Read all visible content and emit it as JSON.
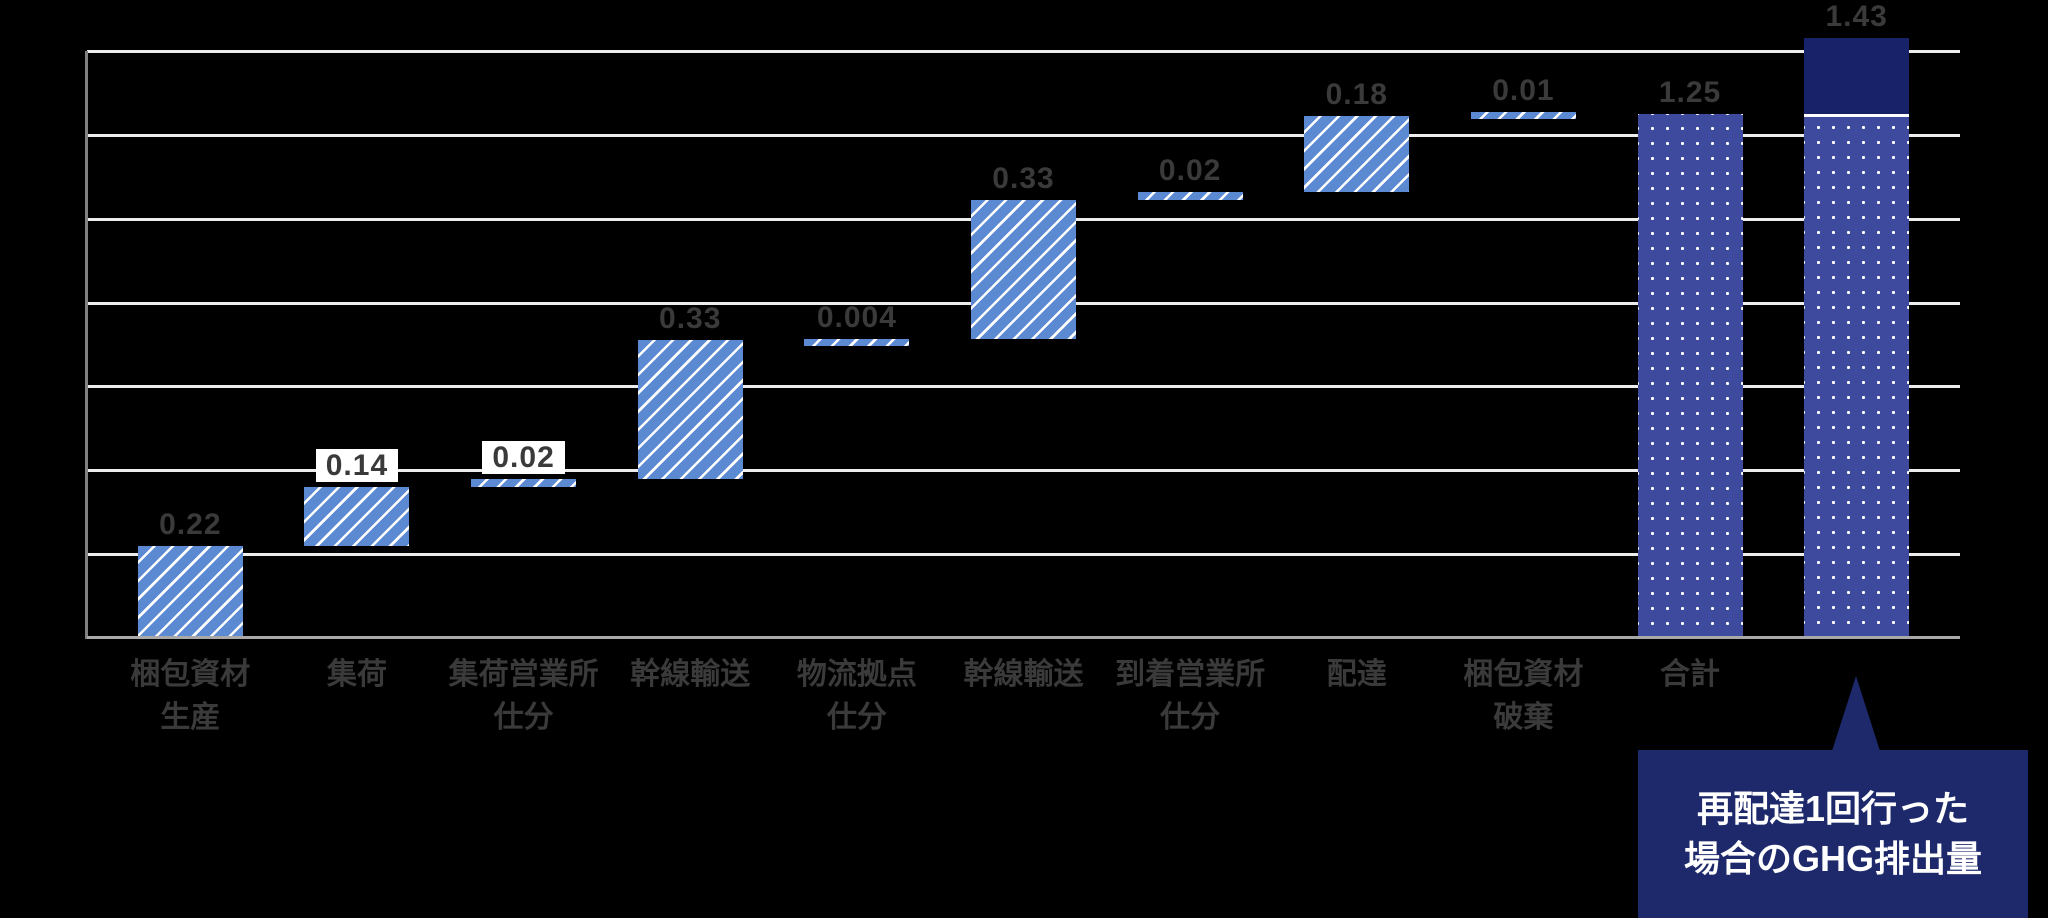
{
  "chart_data": {
    "type": "bar",
    "subtype": "waterfall",
    "title": "",
    "categories": [
      "梱包資材\n生産",
      "集荷",
      "集荷営業所\n仕分",
      "幹線輸送",
      "物流拠点\n仕分",
      "幹線輸送",
      "到着営業所\n仕分",
      "配達",
      "梱包資材\n破棄",
      "合計",
      ""
    ],
    "bars": [
      {
        "category": "梱包資材生産",
        "value": 0.22,
        "label": "0.22",
        "start": 0,
        "end": 0.22,
        "pattern": "striped",
        "label_boxed": false
      },
      {
        "category": "集荷",
        "value": 0.14,
        "label": "0.14",
        "start": 0.22,
        "end": 0.36,
        "pattern": "striped",
        "label_boxed": true
      },
      {
        "category": "集荷営業所仕分",
        "value": 0.02,
        "label": "0.02",
        "start": 0.36,
        "end": 0.38,
        "pattern": "striped",
        "label_boxed": true
      },
      {
        "category": "幹線輸送",
        "value": 0.33,
        "label": "0.33",
        "start": 0.38,
        "end": 0.71,
        "pattern": "striped",
        "label_boxed": false
      },
      {
        "category": "物流拠点仕分",
        "value": 0.004,
        "label": "0.004",
        "start": 0.71,
        "end": 0.714,
        "pattern": "striped",
        "label_boxed": false
      },
      {
        "category": "幹線輸送",
        "value": 0.33,
        "label": "0.33",
        "start": 0.714,
        "end": 1.044,
        "pattern": "striped",
        "label_boxed": false
      },
      {
        "category": "到着営業所仕分",
        "value": 0.02,
        "label": "0.02",
        "start": 1.044,
        "end": 1.064,
        "pattern": "striped",
        "label_boxed": false
      },
      {
        "category": "配達",
        "value": 0.18,
        "label": "0.18",
        "start": 1.064,
        "end": 1.244,
        "pattern": "striped",
        "label_boxed": false
      },
      {
        "category": "梱包資材破棄",
        "value": 0.01,
        "label": "0.01",
        "start": 1.244,
        "end": 1.254,
        "pattern": "striped",
        "label_boxed": false
      },
      {
        "category": "合計",
        "value": 1.25,
        "label": "1.25",
        "start": 0,
        "end": 1.25,
        "pattern": "dotted",
        "label_boxed": false
      },
      {
        "category": "再配達1回行った場合",
        "value": 1.43,
        "label": "1.43",
        "start": 0,
        "end": 1.43,
        "pattern": "dotted_with_cap",
        "cap_from": 1.25,
        "label_boxed": false
      }
    ],
    "ylim": [
      0,
      1.4
    ],
    "y_gridline_interval": 0.2,
    "y_axis_tick_labels_visible": false,
    "grid": true,
    "legend": false
  },
  "callout": {
    "text": "再配達1回行った\n場合のGHG排出量",
    "points_to": "redelivery-total-bar"
  },
  "colors": {
    "background": "#000000",
    "striped_bar": "#5b8ad2",
    "stripe": "#ffffff",
    "dotted_bar": "#3d4a9d",
    "dot": "#ffffff",
    "total_cap": "#172269",
    "callout_bg": "#1d296b",
    "callout_text": "#ffffff",
    "label_text": "#3a3a3a",
    "label_box_bg": "#ffffff",
    "gridline": "#ededed",
    "axis_line": "#808080",
    "baseline": "#a8a8a8"
  }
}
